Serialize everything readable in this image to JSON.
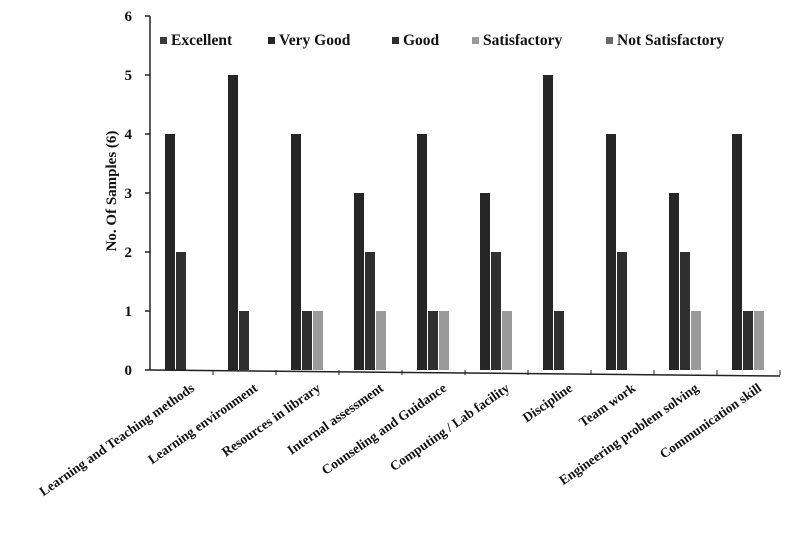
{
  "chart_data": {
    "type": "bar",
    "title": "",
    "xlabel": "",
    "ylabel": "No. Of Samples (6)",
    "ylim": [
      0,
      6
    ],
    "yticks": [
      "0",
      "1",
      "2",
      "3",
      "4",
      "5",
      "6"
    ],
    "legend_position": "top",
    "grid": false,
    "categories": [
      "Learning and Teaching methods",
      "Learning environment",
      "Resources in library",
      "Internal assessment",
      "Counseling and Guidance",
      "Computing / Lab facility",
      "Discipline",
      "Team work",
      "Engineering problem solving",
      "Communication skill"
    ],
    "series": [
      {
        "name": "Excellent",
        "color": "#3a3a3a",
        "values": [
          0,
          0,
          0,
          0,
          0,
          0,
          0,
          0,
          0,
          0
        ]
      },
      {
        "name": "Very Good",
        "color": "#262626",
        "values": [
          4,
          5,
          4,
          3,
          4,
          3,
          5,
          4,
          3,
          4
        ]
      },
      {
        "name": "Good",
        "color": "#2f2f2f",
        "values": [
          2,
          1,
          1,
          2,
          1,
          2,
          1,
          2,
          2,
          1
        ]
      },
      {
        "name": "Satisfactory",
        "color": "#9a9a9a",
        "values": [
          0,
          0,
          1,
          1,
          1,
          1,
          0,
          0,
          1,
          1
        ]
      },
      {
        "name": "Not Satisfactory",
        "color": "#6a6a6a",
        "values": [
          0,
          0,
          0,
          0,
          0,
          0,
          0,
          0,
          0,
          0
        ]
      }
    ]
  }
}
